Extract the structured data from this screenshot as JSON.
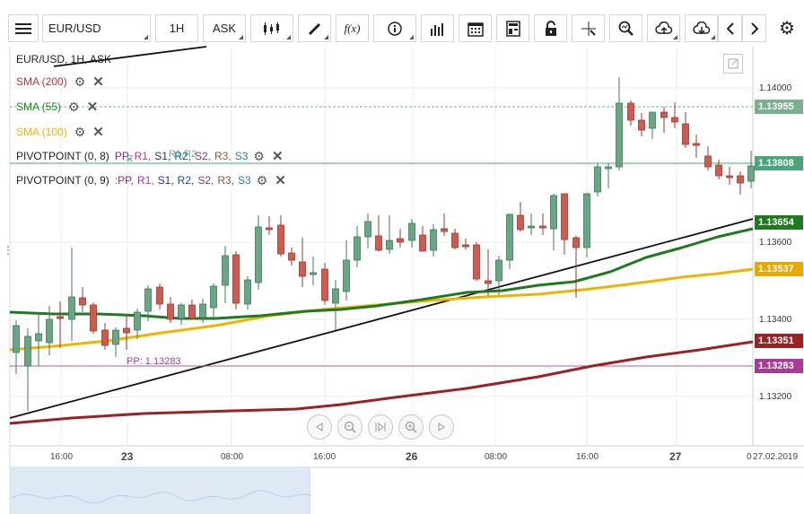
{
  "toolbar": {
    "symbol": "EUR/USD",
    "timeframe": "1H",
    "price_type": "ASK",
    "icons": [
      "menu-icon",
      "candlestick-icon",
      "draw-pen-icon",
      "function-icon",
      "info-icon",
      "bar-chart-icon",
      "calendar-icon",
      "calculator-icon",
      "lock-icon",
      "crosshair-icon",
      "zoom-icon",
      "cloud-upload-icon",
      "cloud-download-icon",
      "chevron-left-icon",
      "chevron-right-icon",
      "gear-icon"
    ],
    "function_label": "f(x)"
  },
  "legend": {
    "title": "EUR/USD, 1H, ASK",
    "indicators": [
      {
        "label": "SMA (200)",
        "color": "#b03a3a"
      },
      {
        "label": "SMA (55)",
        "color": "#1f8a1f"
      },
      {
        "label": "SMA (100)",
        "color": "#f0b400"
      }
    ],
    "pivots": [
      {
        "label": "PIVOTPOINT (0, 8)",
        "overlay": "R1,R2",
        "levels": [
          "PP",
          "R1",
          "S1",
          "R2",
          "S2",
          "R3",
          "S3"
        ]
      },
      {
        "label": "PIVOTPOINT (0, 9)",
        "prefix": ":",
        "levels": [
          "PP",
          "R1",
          "S1",
          "R2",
          "S2",
          "R3",
          "S3"
        ]
      }
    ],
    "level_colors": [
      "#8b2a8b",
      "#b030b0",
      "#2a2a9a",
      "#1a4a9a",
      "#7a3a8a",
      "#8a5a2a",
      "#2a7aaa"
    ]
  },
  "price_axis": {
    "labels": [
      "1.14000",
      "1.13600",
      "1.13400",
      "1.13200"
    ],
    "tags": [
      {
        "value": "1.13955",
        "color": "#7ab08f"
      },
      {
        "value": "1.13808",
        "color": "#4aa57a"
      },
      {
        "value": "1.13654",
        "color": "#1f7a1f"
      },
      {
        "value": "1.13537",
        "color": "#e8a800"
      },
      {
        "value": "1.13351",
        "color": "#9a2222"
      },
      {
        "value": "1.13283",
        "color": "#a83a9a"
      }
    ]
  },
  "time_axis": {
    "labels": [
      {
        "text": "16:00",
        "bold": false
      },
      {
        "text": "23",
        "bold": true
      },
      {
        "text": "08:00",
        "bold": false
      },
      {
        "text": "16:00",
        "bold": false
      },
      {
        "text": "26",
        "bold": true
      },
      {
        "text": "08:00",
        "bold": false
      },
      {
        "text": "16:00",
        "bold": false
      },
      {
        "text": "27",
        "bold": true
      },
      {
        "text": "0",
        "bold": false
      },
      {
        "text": "27.02.2019",
        "bold": false
      }
    ]
  },
  "annotations": {
    "pp_line_label": "PP: 1.13283",
    "r_line_label": "R"
  },
  "nav": [
    "rewind-icon",
    "zoom-out-icon",
    "reset-icon",
    "zoom-in-icon",
    "forward-icon"
  ],
  "colors": {
    "bull": "#6aa584",
    "bear": "#d05a50",
    "sma200": "#9a2222",
    "sma55": "#1f7a1f",
    "sma100": "#f0b400"
  }
}
